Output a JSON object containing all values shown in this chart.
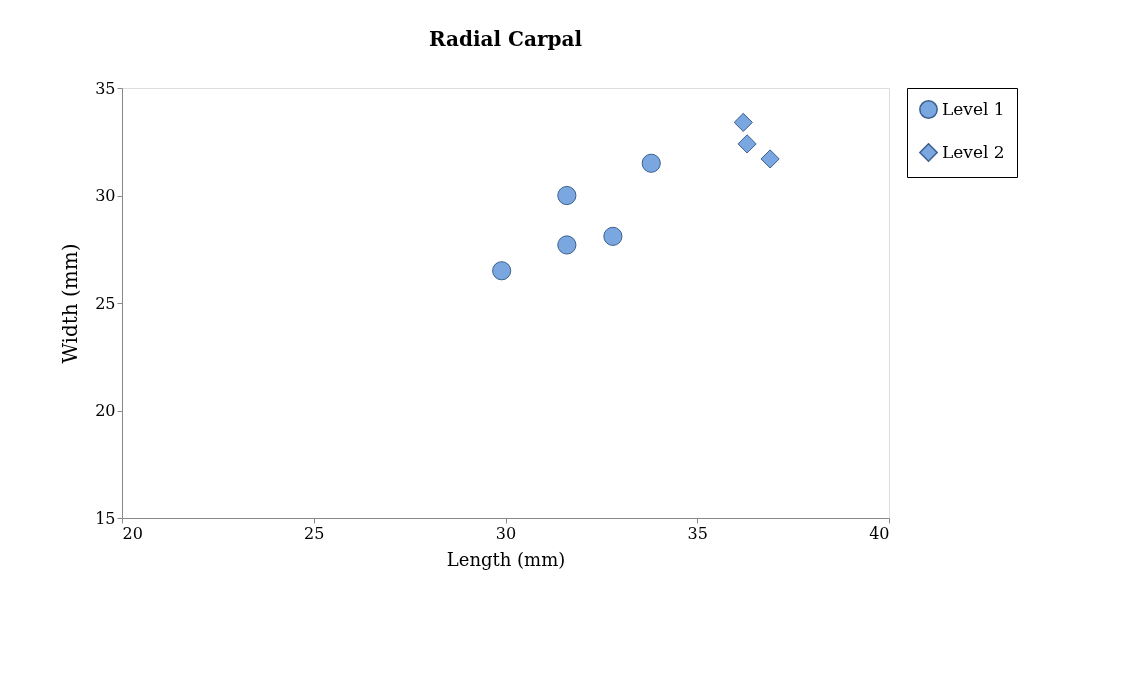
{
  "chart_data": {
    "type": "scatter",
    "title": "Radial Carpal",
    "xlabel": "Length (mm)",
    "ylabel": "Width (mm)",
    "xlim": [
      20,
      40
    ],
    "xticks": [
      20,
      25,
      30,
      35,
      40
    ],
    "ylim": [
      15,
      35
    ],
    "yticks": [
      15,
      20,
      25,
      30,
      35
    ],
    "grid": false,
    "legend": "right",
    "series": [
      {
        "name": "Level 1",
        "color": "#7aa7e0",
        "marker": "circle",
        "x": [
          29.9,
          31.6,
          31.6,
          32.8,
          33.8
        ],
        "values": [
          26.5,
          30.0,
          27.7,
          28.1,
          31.5
        ]
      },
      {
        "name": "Level 2",
        "color": "#7aa7e0",
        "marker": "diamond",
        "x": [
          36.2,
          36.3,
          36.9
        ],
        "values": [
          33.4,
          32.4,
          31.7
        ]
      }
    ]
  }
}
